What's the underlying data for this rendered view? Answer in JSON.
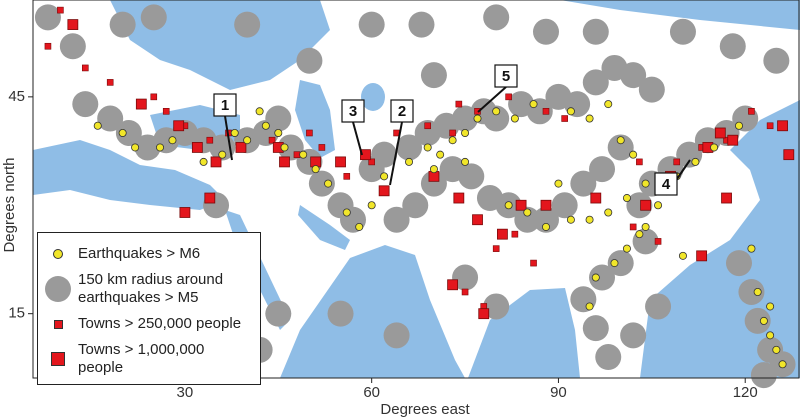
{
  "chart_data": {
    "type": "map",
    "xlabel": "Degrees east",
    "ylabel": "Degrees north",
    "xlim": [
      5.6,
      128.8
    ],
    "ylim": [
      6.1,
      58.4
    ],
    "xticks": [
      30,
      60,
      90,
      120
    ],
    "yticks": [
      15,
      45
    ],
    "annotations": [
      "1",
      "2",
      "3",
      "4",
      "5"
    ],
    "series": [
      {
        "name": "Earthquakes > M6",
        "color": "#f1e62a",
        "marker": "circle",
        "x": [
          38,
          40,
          43,
          45,
          42,
          46,
          49,
          51,
          53,
          56,
          58,
          60,
          62,
          66,
          69,
          71,
          73,
          75,
          77,
          80,
          83,
          86,
          92,
          95,
          98,
          100,
          102,
          104,
          101,
          98,
          95,
          92,
          88,
          85,
          82,
          103,
          101,
          99,
          96,
          95,
          104,
          106,
          109,
          112,
          115,
          119,
          121,
          122,
          123,
          124,
          125,
          126,
          124,
          28,
          26,
          22,
          20,
          16,
          33,
          36,
          75,
          70,
          90,
          110
        ],
        "y": [
          40,
          39,
          41,
          40,
          43,
          38,
          37,
          35,
          33,
          29,
          27,
          30,
          34,
          36,
          38,
          37,
          39,
          40,
          42,
          43,
          42,
          44,
          43,
          42,
          44,
          39,
          37,
          33,
          31,
          29,
          28,
          28,
          27,
          29,
          30,
          26,
          24,
          22,
          20,
          16,
          27,
          30,
          34,
          36,
          38,
          41,
          24,
          18,
          14,
          12,
          10,
          8,
          16,
          39,
          38,
          38,
          40,
          41,
          36,
          37,
          36,
          35,
          33,
          23
        ]
      },
      {
        "name": "150 km radius around earthquakes > M5",
        "color": "#9a9a9a",
        "marker": "circle",
        "x": [
          8,
          12,
          20,
          25,
          14,
          18,
          21,
          24,
          27,
          30,
          33,
          36,
          40,
          43,
          45,
          47,
          50,
          52,
          55,
          57,
          60,
          62,
          66,
          69,
          72,
          75,
          78,
          80,
          84,
          87,
          90,
          93,
          96,
          99,
          102,
          105,
          100,
          97,
          94,
          91,
          88,
          85,
          82,
          79,
          76,
          73,
          70,
          67,
          64,
          103,
          105,
          108,
          111,
          114,
          117,
          120,
          104,
          100,
          97,
          94,
          96,
          98,
          102,
          106,
          119,
          121,
          122,
          124,
          126,
          123,
          60,
          68,
          80,
          88,
          96,
          110,
          118,
          125,
          40,
          50,
          70,
          75,
          80,
          64,
          55,
          45,
          38,
          35,
          42
        ],
        "y": [
          56,
          52,
          55,
          56,
          44,
          42,
          40,
          38,
          39,
          40,
          39,
          38,
          39,
          40,
          42,
          38,
          36,
          33,
          30,
          28,
          35,
          37,
          38,
          40,
          41,
          42,
          43,
          42,
          44,
          43,
          45,
          44,
          47,
          49,
          48,
          46,
          38,
          35,
          33,
          30,
          28,
          28,
          30,
          31,
          34,
          35,
          33,
          30,
          28,
          30,
          33,
          35,
          37,
          39,
          40,
          42,
          25,
          22,
          20,
          17,
          13,
          9,
          12,
          16,
          22,
          18,
          14,
          10,
          8,
          6.5,
          55,
          55,
          56,
          54,
          54,
          54,
          52,
          50,
          55,
          50,
          48,
          20,
          16,
          12,
          15,
          15,
          22,
          30,
          10
        ]
      },
      {
        "name": "Towns > 250,000 people",
        "color": "#e3161d",
        "marker": "square",
        "x": [
          10,
          8,
          14,
          18,
          25,
          27,
          30,
          34,
          37,
          44,
          48,
          52,
          56,
          60,
          64,
          69,
          73,
          77,
          82,
          88,
          91,
          103,
          106,
          109,
          113,
          117,
          121,
          124,
          80,
          83,
          86,
          78,
          75,
          106,
          102,
          74,
          50,
          36
        ],
        "y": [
          57,
          52,
          49,
          47,
          45,
          43,
          41,
          39,
          40,
          39,
          37,
          38,
          34,
          36,
          40,
          41,
          40,
          43,
          45,
          43,
          42,
          36,
          34,
          36,
          38,
          39,
          43,
          41,
          24,
          26,
          22,
          16,
          18,
          25,
          27,
          44,
          40,
          45
        ]
      },
      {
        "name": "Towns > 1,000,000 people",
        "color": "#e3161d",
        "marker": "square",
        "x": [
          12,
          23,
          29,
          32,
          35,
          39,
          45,
          46,
          51,
          55,
          59,
          62,
          70,
          74,
          77,
          81,
          84,
          88,
          96,
          104,
          108,
          114,
          116,
          118,
          126,
          127,
          113,
          117,
          73,
          78,
          34,
          30
        ],
        "y": [
          55,
          44,
          41,
          38,
          36,
          38,
          38,
          36,
          36,
          36,
          37,
          32,
          34,
          31,
          28,
          26,
          30,
          30,
          31,
          30,
          34,
          38,
          40,
          39,
          41,
          37,
          23,
          31,
          19,
          15,
          31,
          29
        ]
      }
    ]
  }
}
